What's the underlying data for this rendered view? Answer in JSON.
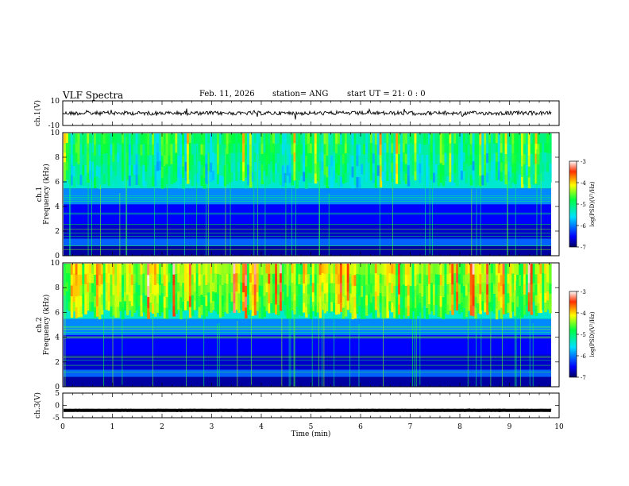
{
  "header": {
    "title": "VLF Spectra",
    "date": "Feb. 11, 2026",
    "station": "station= ANG",
    "start": "start  UT =   21: 0  : 0"
  },
  "chart_data": [
    {
      "type": "line",
      "name": "ch1-waveform",
      "ylabel": "ch.1(V)",
      "ylim": [
        -10,
        10
      ],
      "yticks": [
        "10",
        "-10"
      ],
      "baseline": 0
    },
    {
      "type": "heatmap",
      "name": "ch1-spectrogram",
      "ylabel": "ch.1",
      "ylabel2": "Frequency (kHz)",
      "ylim": [
        0,
        10
      ],
      "yticks": [
        "0",
        "2",
        "4",
        "6",
        "8",
        "10"
      ],
      "colorbar": {
        "label": "log(PSD)(V²/Hz)",
        "range": [
          -7,
          -3
        ],
        "ticks": [
          "-3",
          "-4",
          "-5",
          "-6",
          "-7"
        ]
      }
    },
    {
      "type": "heatmap",
      "name": "ch2-spectrogram",
      "ylabel": "ch.2",
      "ylabel2": "Frequency (kHz)",
      "ylim": [
        0,
        10
      ],
      "yticks": [
        "0",
        "2",
        "4",
        "6",
        "8",
        "10"
      ],
      "colorbar": {
        "label": "log(PSD)(V²/Hz)",
        "range": [
          -7,
          -3
        ],
        "ticks": [
          "-3",
          "-4",
          "-5",
          "-6",
          "-7"
        ]
      }
    },
    {
      "type": "line",
      "name": "ch3-waveform",
      "ylabel": "ch.3(V)",
      "ylim": [
        -5,
        5
      ],
      "yticks": [
        "5",
        "0",
        "-5"
      ],
      "baseline": -2
    }
  ],
  "x_axis": {
    "label": "Time (min)",
    "range": [
      0,
      10
    ],
    "ticks": [
      "0",
      "1",
      "2",
      "3",
      "4",
      "5",
      "6",
      "7",
      "8",
      "9",
      "10"
    ],
    "data_end": 9.84
  }
}
